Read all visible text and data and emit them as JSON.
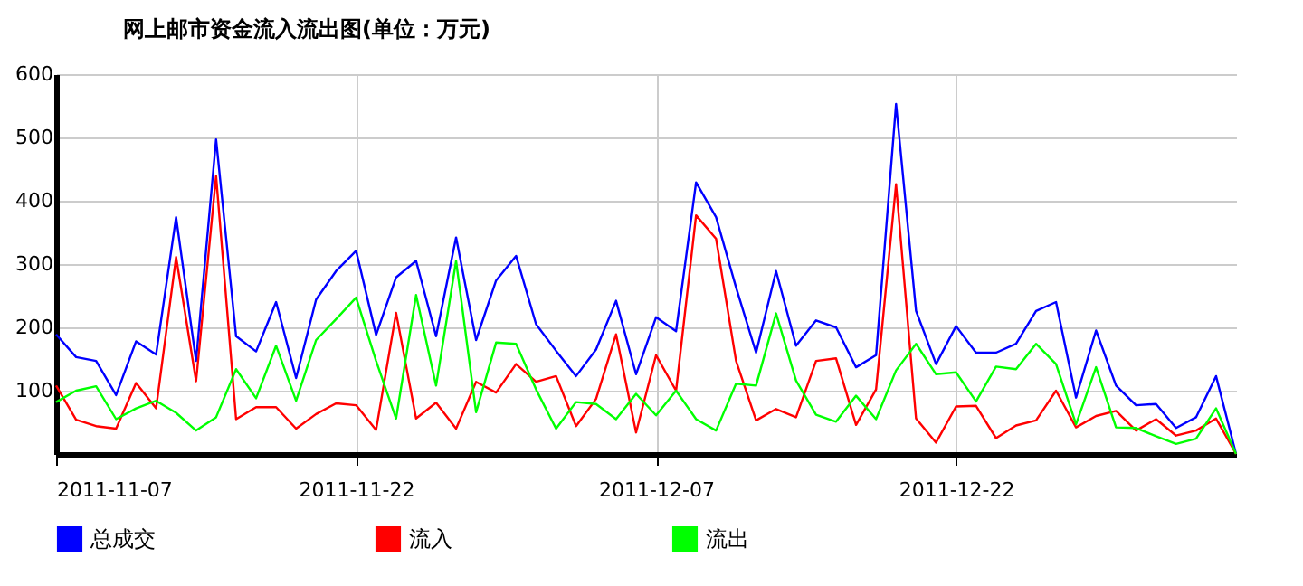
{
  "chart_data": {
    "type": "line",
    "title": "网上邮市资金流入流出图(单位：万元)",
    "x": [
      "2011-11-07",
      "2011-11-08",
      "2011-11-09",
      "2011-11-10",
      "2011-11-11",
      "2011-11-12",
      "2011-11-13",
      "2011-11-14",
      "2011-11-15",
      "2011-11-16",
      "2011-11-17",
      "2011-11-18",
      "2011-11-19",
      "2011-11-20",
      "2011-11-21",
      "2011-11-22",
      "2011-11-23",
      "2011-11-24",
      "2011-11-25",
      "2011-11-26",
      "2011-11-27",
      "2011-11-28",
      "2011-11-29",
      "2011-11-30",
      "2011-12-01",
      "2011-12-02",
      "2011-12-03",
      "2011-12-04",
      "2011-12-05",
      "2011-12-06",
      "2011-12-07",
      "2011-12-08",
      "2011-12-09",
      "2011-12-10",
      "2011-12-11",
      "2011-12-12",
      "2011-12-13",
      "2011-12-14",
      "2011-12-15",
      "2011-12-16",
      "2011-12-17",
      "2011-12-18",
      "2011-12-19",
      "2011-12-20",
      "2011-12-21",
      "2011-12-22",
      "2011-12-23",
      "2011-12-24",
      "2011-12-25",
      "2011-12-26",
      "2011-12-27",
      "2011-12-28",
      "2011-12-29",
      "2011-12-30",
      "2011-12-31",
      "2012-01-01",
      "2012-01-02",
      "2012-01-03",
      "2012-01-04",
      "2012-01-05"
    ],
    "series": [
      {
        "name": "总成交",
        "color": "#0000ff",
        "values": [
          189,
          153,
          147,
          93,
          178,
          157,
          374,
          147,
          497,
          186,
          162,
          240,
          120,
          244,
          289,
          321,
          188,
          279,
          305,
          186,
          342,
          180,
          274,
          313,
          205,
          163,
          123,
          165,
          242,
          126,
          216,
          194,
          429,
          374,
          263,
          160,
          289,
          171,
          211,
          200,
          137,
          156,
          553,
          226,
          142,
          202,
          160,
          160,
          174,
          226,
          240,
          89,
          195,
          108,
          77,
          79,
          41,
          58,
          123,
          0
        ]
      },
      {
        "name": "流入",
        "color": "#ff0000",
        "values": [
          108,
          54,
          44,
          40,
          112,
          72,
          311,
          115,
          439,
          55,
          74,
          74,
          40,
          63,
          80,
          77,
          38,
          223,
          56,
          81,
          40,
          114,
          97,
          142,
          114,
          123,
          44,
          87,
          189,
          34,
          156,
          100,
          377,
          340,
          147,
          53,
          71,
          58,
          147,
          151,
          46,
          102,
          426,
          56,
          18,
          75,
          76,
          25,
          45,
          53,
          100,
          42,
          60,
          68,
          37,
          55,
          29,
          37,
          56,
          0
        ]
      },
      {
        "name": "流出",
        "color": "#00ff00",
        "values": [
          82,
          100,
          107,
          55,
          72,
          84,
          65,
          37,
          58,
          134,
          88,
          171,
          84,
          180,
          213,
          247,
          147,
          56,
          251,
          108,
          305,
          66,
          176,
          174,
          102,
          40,
          82,
          79,
          55,
          95,
          61,
          100,
          55,
          37,
          111,
          108,
          222,
          116,
          62,
          51,
          92,
          55,
          132,
          174,
          126,
          129,
          83,
          138,
          134,
          174,
          142,
          47,
          137,
          42,
          41,
          28,
          16,
          24,
          72,
          0
        ]
      }
    ],
    "xlim": [
      "2011-11-07",
      "2012-01-05"
    ],
    "xticks": [
      "2011-11-07",
      "2011-11-22",
      "2011-12-07",
      "2011-12-22"
    ],
    "ylim": [
      0,
      600
    ],
    "yticks": [
      100,
      200,
      300,
      400,
      500,
      600
    ],
    "grid": true,
    "legend": "bottom",
    "marker": "none",
    "line_style": "solid"
  }
}
